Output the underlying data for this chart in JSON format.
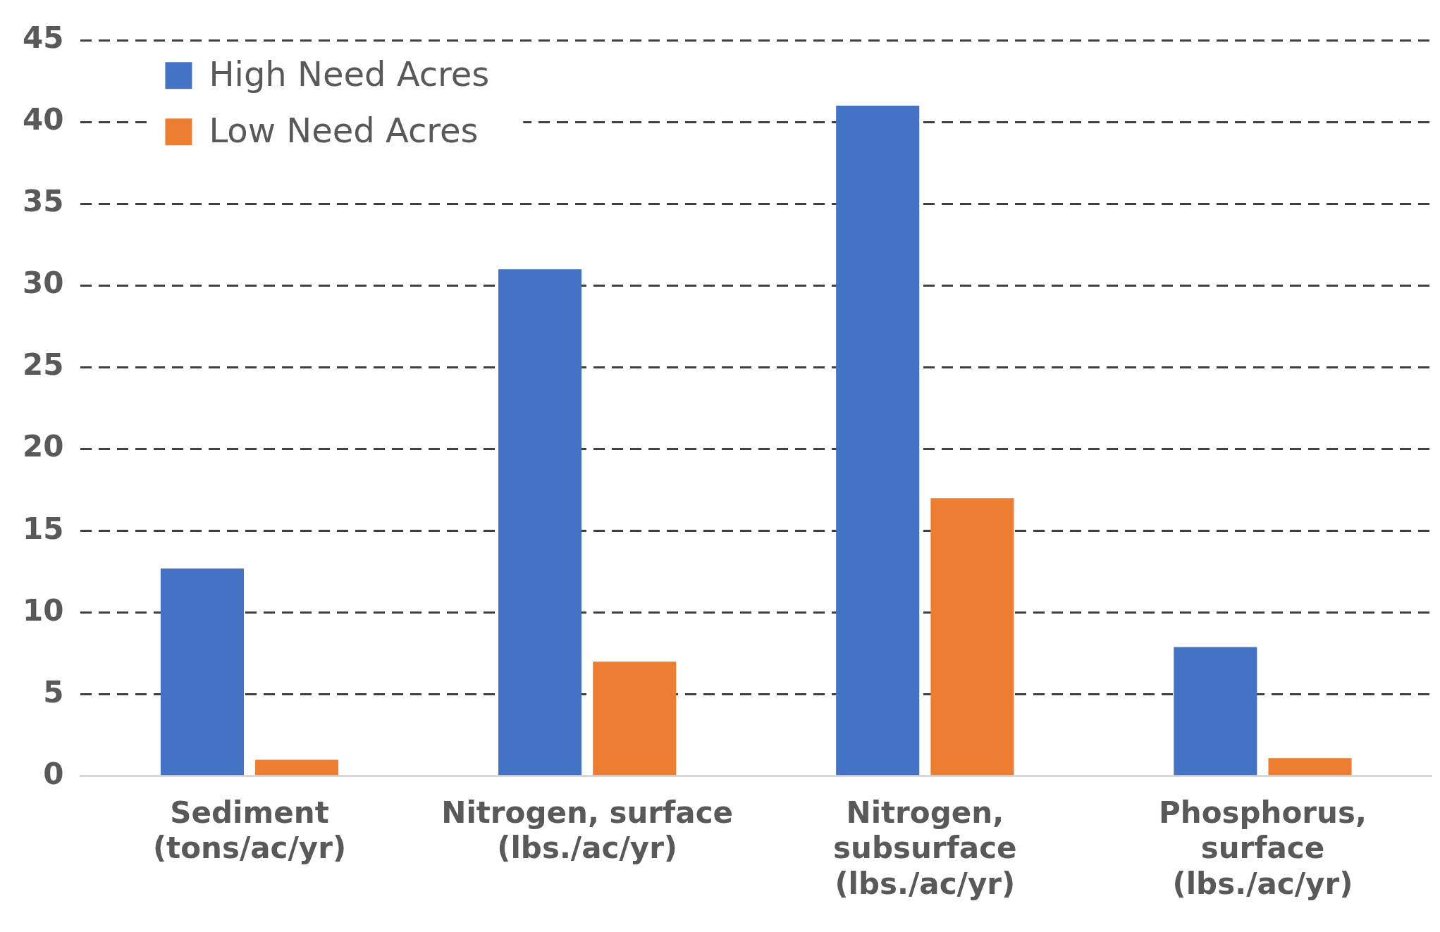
{
  "chart_data": {
    "type": "bar",
    "categories": [
      "Sediment (tons/ac/yr)",
      "Nitrogen, surface (lbs./ac/yr)",
      "Nitrogen, subsurface (lbs./ac/yr)",
      "Phosphorus, surface (lbs./ac/yr)"
    ],
    "series": [
      {
        "name": "High Need Acres",
        "color": "#4472c4",
        "values": [
          12.7,
          31,
          41,
          7.9
        ]
      },
      {
        "name": "Low Need Acres",
        "color": "#ed7d31",
        "values": [
          1,
          7,
          17,
          1.1
        ]
      }
    ],
    "ylim": [
      0,
      45
    ],
    "yticks": [
      0,
      5,
      10,
      15,
      20,
      25,
      30,
      35,
      40,
      45
    ],
    "grid": "y",
    "line_style": "dashed",
    "legend": "top left"
  }
}
